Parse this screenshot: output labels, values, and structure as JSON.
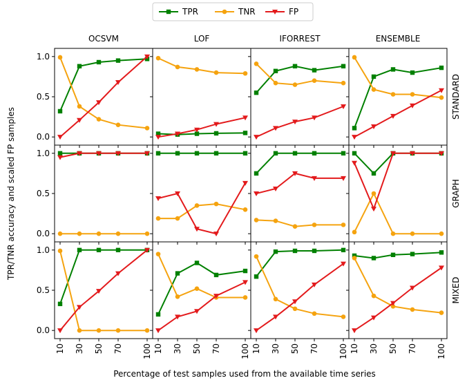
{
  "chart_data": {
    "type": "line",
    "columns": [
      "OCSVM",
      "LOF",
      "IFORREST",
      "ENSEMBLE"
    ],
    "rows": [
      "STANDARD",
      "GRAPH",
      "MIXED"
    ],
    "x": [
      10,
      30,
      50,
      70,
      100
    ],
    "x_tick_labels": [
      "10",
      "30",
      "50",
      "70",
      "100"
    ],
    "y_tick_labels": [
      "0.0",
      "0.5",
      "1.0"
    ],
    "ylim": [
      -0.05,
      1.05
    ],
    "xlabel": "Percentage of test samples used from the available time series",
    "ylabel": "TPR/TNR accuracy and scaled FP samples",
    "legend_position": "top-center",
    "series": [
      {
        "name": "TPR",
        "color": "#008000",
        "marker": "square"
      },
      {
        "name": "TNR",
        "color": "#f5a30f",
        "marker": "circle"
      },
      {
        "name": "FP",
        "color": "#e31a1c",
        "marker": "triangle-down"
      }
    ],
    "panels": [
      [
        {
          "TPR": [
            0.32,
            0.88,
            0.93,
            0.95,
            0.97
          ],
          "TNR": [
            0.99,
            0.38,
            0.22,
            0.15,
            0.11
          ],
          "FP": [
            0.0,
            0.21,
            0.43,
            0.68,
            1.0
          ]
        },
        {
          "TPR": [
            0.04,
            0.03,
            0.04,
            0.045,
            0.05
          ],
          "TNR": [
            0.98,
            0.87,
            0.84,
            0.8,
            0.79
          ],
          "FP": [
            0.0,
            0.04,
            0.09,
            0.16,
            0.24
          ]
        },
        {
          "TPR": [
            0.55,
            0.82,
            0.88,
            0.83,
            0.88
          ],
          "TNR": [
            0.91,
            0.67,
            0.65,
            0.7,
            0.67
          ],
          "FP": [
            0.0,
            0.11,
            0.19,
            0.24,
            0.38
          ]
        },
        {
          "TPR": [
            0.11,
            0.75,
            0.84,
            0.8,
            0.86
          ],
          "TNR": [
            0.99,
            0.59,
            0.53,
            0.53,
            0.49
          ],
          "FP": [
            0.0,
            0.13,
            0.26,
            0.39,
            0.58
          ]
        }
      ],
      [
        {
          "TPR": [
            1.0,
            1.0,
            1.0,
            1.0,
            1.0
          ],
          "TNR": [
            0.0,
            0.0,
            0.0,
            0.0,
            0.0
          ],
          "FP": [
            0.95,
            1.0,
            1.0,
            1.0,
            1.0
          ]
        },
        {
          "TPR": [
            1.0,
            1.0,
            1.0,
            1.0,
            1.0
          ],
          "TNR": [
            0.19,
            0.19,
            0.35,
            0.37,
            0.3
          ],
          "FP": [
            0.44,
            0.5,
            0.06,
            0.0,
            0.63
          ]
        },
        {
          "TPR": [
            0.75,
            1.0,
            1.0,
            1.0,
            1.0
          ],
          "TNR": [
            0.17,
            0.16,
            0.09,
            0.11,
            0.11
          ],
          "FP": [
            0.5,
            0.56,
            0.75,
            0.69,
            0.69
          ]
        },
        {
          "TPR": [
            1.0,
            0.75,
            1.0,
            1.0,
            1.0
          ],
          "TNR": [
            0.02,
            0.5,
            0.0,
            0.0,
            0.0
          ],
          "FP": [
            0.88,
            0.31,
            1.0,
            1.0,
            1.0
          ]
        }
      ],
      [
        {
          "TPR": [
            0.33,
            1.0,
            1.0,
            1.0,
            1.0
          ],
          "TNR": [
            0.99,
            0.0,
            0.0,
            0.0,
            0.0
          ],
          "FP": [
            0.0,
            0.29,
            0.49,
            0.71,
            1.0
          ]
        },
        {
          "TPR": [
            0.2,
            0.71,
            0.84,
            0.69,
            0.74
          ],
          "TNR": [
            0.95,
            0.42,
            0.52,
            0.41,
            0.41
          ],
          "FP": [
            0.0,
            0.17,
            0.24,
            0.43,
            0.6
          ]
        },
        {
          "TPR": [
            0.67,
            0.98,
            0.99,
            0.99,
            1.0
          ],
          "TNR": [
            0.92,
            0.39,
            0.27,
            0.21,
            0.17
          ],
          "FP": [
            0.0,
            0.17,
            0.36,
            0.57,
            0.83
          ]
        },
        {
          "TPR": [
            0.93,
            0.9,
            0.94,
            0.95,
            0.97
          ],
          "TNR": [
            0.9,
            0.43,
            0.3,
            0.26,
            0.22
          ],
          "FP": [
            0.0,
            0.16,
            0.34,
            0.53,
            0.78
          ]
        }
      ]
    ]
  }
}
